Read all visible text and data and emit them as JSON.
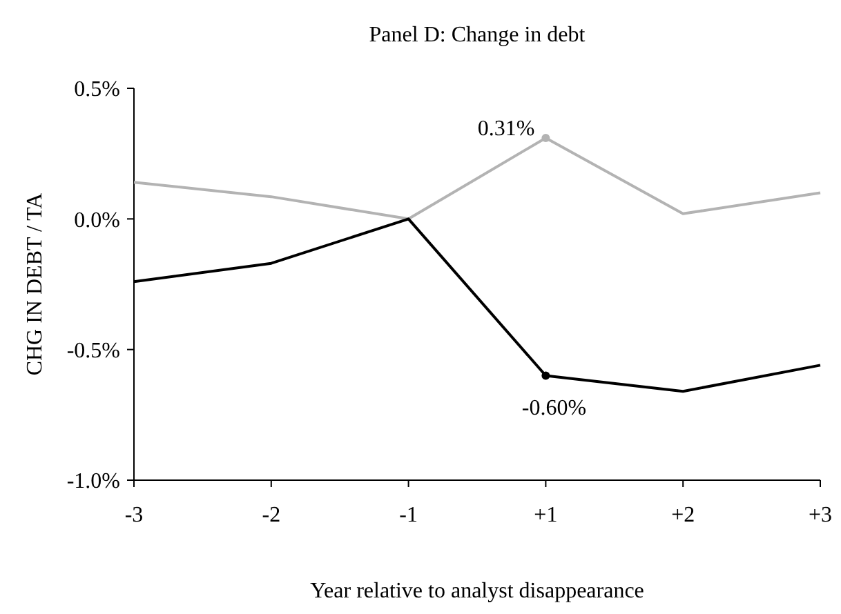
{
  "chart_data": {
    "type": "line",
    "title": "Panel D: Change in debt",
    "xlabel": "Year relative to analyst disappearance",
    "ylabel": "CHG IN DEBT / TA",
    "categories": [
      "-3",
      "-2",
      "-1",
      "+1",
      "+2",
      "+3"
    ],
    "series": [
      {
        "color": "#b3b3b3",
        "values": [
          0.14,
          0.085,
          0,
          0.31,
          0.02,
          0.1
        ]
      },
      {
        "color": "#000000",
        "values": [
          -0.24,
          -0.17,
          0,
          -0.6,
          -0.66,
          -0.56
        ]
      }
    ],
    "ylim": [
      -1,
      0.5
    ],
    "yticks": [
      {
        "value": -1,
        "label": "-1.0%"
      },
      {
        "value": -0.5,
        "label": "-0.5%"
      },
      {
        "value": 0,
        "label": "0.0%"
      },
      {
        "value": 0.5,
        "label": "0.5%"
      }
    ],
    "annotations": [
      {
        "text": "0.31%",
        "x": "+1",
        "y": 0.31
      },
      {
        "text": "-0.60%",
        "x": "+1",
        "y": -0.6
      }
    ],
    "grid": false,
    "marker": "none",
    "line_style": "solid"
  }
}
